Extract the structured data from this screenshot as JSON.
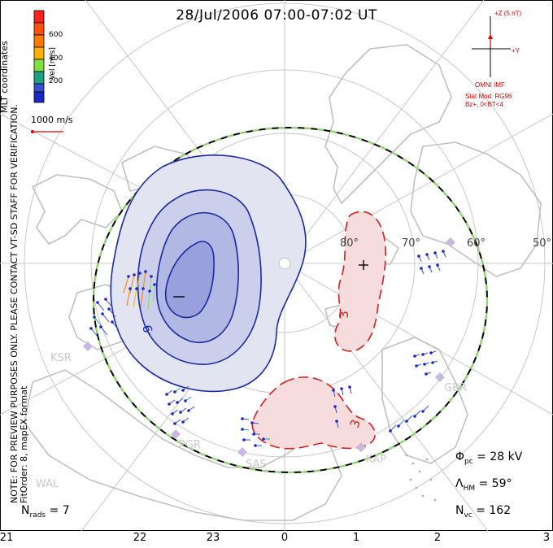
{
  "title": "28/Jul/2006 07:00-07:02 UT",
  "note_lines": [
    "MLT coordinates",
    "NOTE: FOR PREVIEW PURPOSES ONLY. PLEASE CONTACT VT-SD STAFF FOR VERIFICATION.",
    "FitOrder: 8, mapEX format"
  ],
  "color_scale": {
    "label": "Vel [m/s]",
    "ticks": [
      "600",
      "400",
      "200"
    ],
    "colors": [
      "#ff2020",
      "#ff7a00",
      "#ffb000",
      "#80e040",
      "#20a080",
      "#3a50d0",
      "#1a28c8"
    ]
  },
  "reference_vector_label": "1000 m/s",
  "imf": {
    "bz_label": "+Z (5 nT)",
    "by_label": "+Y",
    "source": "OMNI IMF",
    "model_line1": "Stat Mod: RG96",
    "model_line2": "Bz+, 0<BT<4"
  },
  "lat_labels": [
    "80°",
    "70°",
    "60°",
    "50°"
  ],
  "stations": [
    "KSR",
    "PGR",
    "SAS",
    "KAP",
    "GBR",
    "WAL"
  ],
  "contour_labels": [
    "-9",
    "3",
    "3"
  ],
  "extrema_marks": [
    "−",
    "+"
  ],
  "stats": {
    "phi_pc_sym": "Φ",
    "phi_pc_sub": "pc",
    "phi_pc_value": "= 28 kV",
    "lambda_hm_sym": "Λ",
    "lambda_hm_sub": "HM",
    "lambda_hm_value": "= 59°",
    "n_vc_sym": "N",
    "n_vc_sub": "vc",
    "n_vc_value": "= 162",
    "n_rads_sym": "N",
    "n_rads_sub": "rads",
    "n_rads_value": "= 7"
  },
  "x_ticks": [
    "21",
    "22",
    "23",
    "0",
    "1",
    "2",
    "3"
  ],
  "colors": {
    "negative_cell": "#1a2aa0",
    "positive_cell": "#d02020",
    "hmb": "#90d870",
    "imf": "#e00000",
    "grid": "#c8c8c8"
  }
}
